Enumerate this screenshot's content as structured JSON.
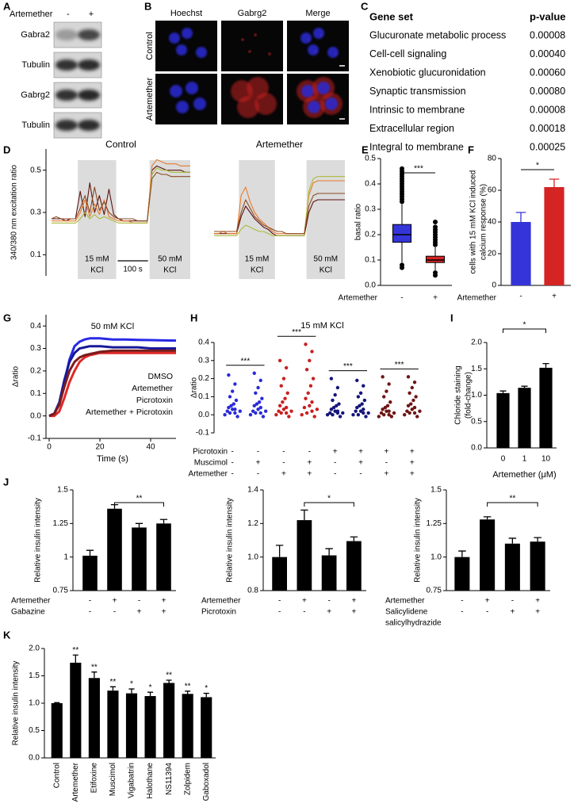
{
  "figure": {
    "A": {
      "label": "A",
      "treatment": "Artemether",
      "lanes": [
        "-",
        "+"
      ],
      "rows": [
        "Gabra2",
        "Tubulin",
        "Gabrg2",
        "Tubulin"
      ]
    },
    "B": {
      "label": "B",
      "columns": [
        "Hoechst",
        "Gabrg2",
        "Merge"
      ],
      "rows": [
        "Control",
        "Artemether"
      ]
    },
    "C": {
      "label": "C",
      "header": [
        "Gene set",
        "p-value"
      ],
      "rows": [
        [
          "Glucuronate metabolic process",
          "0.00008"
        ],
        [
          "Cell-cell signaling",
          "0.00040"
        ],
        [
          "Xenobiotic glucuronidation",
          "0.00060"
        ],
        [
          "Synaptic transmission",
          "0.00080"
        ],
        [
          "Intrinsic to membrane",
          "0.00008"
        ],
        [
          "Extracellular region",
          "0.00018"
        ],
        [
          "Integral to membrane",
          "0.00025"
        ]
      ]
    }
  },
  "chart_data": [
    {
      "type": "line",
      "label": "D",
      "title": "Control",
      "ylabel": "340/380 nm excitation ratio",
      "ylim": [
        0,
        0.6
      ],
      "yticks": [
        0.1,
        0.3,
        0.5
      ],
      "stimuli": [
        [
          "15 mM",
          "KCl"
        ],
        [
          "50 mM",
          "KCl"
        ]
      ],
      "scale_bar": "100 s",
      "series": [
        {
          "color": "#5c1212",
          "values": [
            0.27,
            0.27,
            0.27,
            0.26,
            0.27,
            0.27,
            0.4,
            0.28,
            0.44,
            0.3,
            0.38,
            0.29,
            0.41,
            0.29,
            0.27,
            0.26,
            0.26,
            0.26,
            0.26,
            0.26,
            0.26,
            0.5,
            0.52,
            0.51,
            0.5,
            0.5,
            0.5,
            0.5,
            0.49,
            0.49
          ]
        },
        {
          "color": "#e87a2a",
          "values": [
            0.26,
            0.26,
            0.26,
            0.26,
            0.26,
            0.26,
            0.3,
            0.36,
            0.28,
            0.34,
            0.29,
            0.36,
            0.28,
            0.27,
            0.26,
            0.26,
            0.26,
            0.25,
            0.25,
            0.25,
            0.25,
            0.52,
            0.55,
            0.54,
            0.53,
            0.53,
            0.53,
            0.52,
            0.52,
            0.52
          ]
        },
        {
          "color": "#a9bb3c",
          "values": [
            0.25,
            0.25,
            0.25,
            0.25,
            0.25,
            0.25,
            0.27,
            0.3,
            0.27,
            0.29,
            0.27,
            0.28,
            0.27,
            0.26,
            0.25,
            0.25,
            0.25,
            0.25,
            0.25,
            0.25,
            0.25,
            0.48,
            0.51,
            0.5,
            0.5,
            0.49,
            0.49,
            0.49,
            0.49,
            0.49
          ]
        },
        {
          "color": "#8b4a22",
          "values": [
            0.27,
            0.28,
            0.27,
            0.27,
            0.27,
            0.27,
            0.32,
            0.38,
            0.3,
            0.42,
            0.31,
            0.35,
            0.3,
            0.28,
            0.27,
            0.27,
            0.27,
            0.27,
            0.26,
            0.26,
            0.26,
            0.46,
            0.49,
            0.48,
            0.48,
            0.47,
            0.47,
            0.47,
            0.47,
            0.47
          ]
        }
      ]
    },
    {
      "type": "line",
      "title": "Artemether",
      "ylim": [
        0,
        0.6
      ],
      "stimuli": [
        [
          "15 mM",
          "KCl"
        ],
        [
          "50 mM",
          "KCl"
        ]
      ],
      "series": [
        {
          "color": "#5c1212",
          "values": [
            0.2,
            0.2,
            0.2,
            0.2,
            0.2,
            0.2,
            0.28,
            0.33,
            0.3,
            0.27,
            0.25,
            0.23,
            0.22,
            0.2,
            0.19,
            0.19,
            0.19,
            0.19,
            0.19,
            0.19,
            0.19,
            0.3,
            0.35,
            0.36,
            0.36,
            0.36,
            0.36,
            0.36,
            0.36,
            0.36
          ]
        },
        {
          "color": "#e87a2a",
          "values": [
            0.2,
            0.2,
            0.21,
            0.2,
            0.2,
            0.2,
            0.38,
            0.42,
            0.35,
            0.3,
            0.27,
            0.25,
            0.23,
            0.21,
            0.2,
            0.2,
            0.2,
            0.2,
            0.2,
            0.2,
            0.2,
            0.38,
            0.44,
            0.45,
            0.45,
            0.45,
            0.45,
            0.45,
            0.45,
            0.45
          ]
        },
        {
          "color": "#a9bb3c",
          "values": [
            0.19,
            0.19,
            0.19,
            0.19,
            0.19,
            0.19,
            0.22,
            0.24,
            0.23,
            0.22,
            0.21,
            0.21,
            0.2,
            0.19,
            0.19,
            0.19,
            0.19,
            0.19,
            0.19,
            0.19,
            0.19,
            0.4,
            0.46,
            0.47,
            0.47,
            0.47,
            0.47,
            0.47,
            0.47,
            0.47
          ]
        },
        {
          "color": "#8b4a22",
          "values": [
            0.21,
            0.21,
            0.21,
            0.21,
            0.21,
            0.21,
            0.3,
            0.36,
            0.32,
            0.28,
            0.26,
            0.24,
            0.23,
            0.22,
            0.21,
            0.21,
            0.2,
            0.2,
            0.2,
            0.2,
            0.2,
            0.33,
            0.38,
            0.39,
            0.39,
            0.39,
            0.39,
            0.39,
            0.39,
            0.39
          ]
        }
      ]
    },
    {
      "type": "box",
      "label": "E",
      "ylabel": "basal ratio",
      "xlabel": "Artemether",
      "categories": [
        "-",
        "+"
      ],
      "ylim": [
        0,
        0.5
      ],
      "yticks": [
        {
          "value": 0,
          "label": "0.0"
        },
        0.1,
        0.2,
        0.3,
        0.4,
        0.5
      ],
      "colors": [
        "#3434d8",
        "#d42424"
      ],
      "boxes": [
        {
          "whisker_low": 0.09,
          "q1": 0.17,
          "median": 0.2,
          "q3": 0.24,
          "whisker_high": 0.32,
          "outliers": [
            0.33,
            0.34,
            0.35,
            0.36,
            0.37,
            0.38,
            0.39,
            0.4,
            0.41,
            0.42,
            0.43,
            0.44,
            0.45,
            0.46,
            0.08,
            0.07
          ]
        },
        {
          "whisker_low": 0.06,
          "q1": 0.09,
          "median": 0.1,
          "q3": 0.115,
          "whisker_high": 0.15,
          "outliers": [
            0.16,
            0.17,
            0.18,
            0.19,
            0.2,
            0.21,
            0.22,
            0.23,
            0.25,
            0.05,
            0.04
          ]
        }
      ],
      "significance": "***"
    },
    {
      "type": "bar",
      "label": "F",
      "ylabel": [
        "cells with 15 mM KCl induced",
        "calcium response (%)"
      ],
      "xlabel": "Artemether",
      "categories": [
        "-",
        "+"
      ],
      "values": [
        40,
        62
      ],
      "errors": [
        6,
        5
      ],
      "colors": [
        "#3434d8",
        "#d42424"
      ],
      "ylim": [
        0,
        80
      ],
      "yticks": [
        0,
        20,
        40,
        60,
        80
      ],
      "significance": "*"
    },
    {
      "type": "line",
      "label": "G",
      "title": "50 mM KCl",
      "ylabel": "Δratio",
      "xlabel": "Time (s)",
      "x": [
        0,
        2,
        4,
        6,
        8,
        10,
        12,
        14,
        16,
        18,
        20,
        25,
        30,
        35,
        40,
        45,
        50
      ],
      "xlim": [
        0,
        50
      ],
      "xticks": [
        0,
        20,
        40
      ],
      "ylim": [
        -0.1,
        0.45
      ],
      "yticks": [
        -0.1,
        {
          "value": 0,
          "label": "0.0"
        },
        0.1,
        0.2,
        0.3,
        0.4
      ],
      "series": [
        {
          "name": "DMSO",
          "color": "#2828e6",
          "values": [
            0,
            0.01,
            0.05,
            0.15,
            0.25,
            0.31,
            0.33,
            0.34,
            0.345,
            0.345,
            0.345,
            0.34,
            0.34,
            0.338,
            0.337,
            0.336,
            0.335
          ]
        },
        {
          "name": "Artemether",
          "color": "#e02828",
          "values": [
            0,
            0,
            0.02,
            0.08,
            0.15,
            0.2,
            0.24,
            0.26,
            0.27,
            0.275,
            0.28,
            0.28,
            0.28,
            0.28,
            0.28,
            0.28,
            0.28
          ]
        },
        {
          "name": "Picrotoxin",
          "color": "#18189a",
          "values": [
            0,
            0.01,
            0.06,
            0.16,
            0.24,
            0.28,
            0.3,
            0.305,
            0.31,
            0.31,
            0.31,
            0.305,
            0.305,
            0.305,
            0.3,
            0.3,
            0.3
          ]
        },
        {
          "name": "Artemether + Picrotoxin",
          "color": "#7a1c1c",
          "values": [
            0,
            0.01,
            0.05,
            0.13,
            0.2,
            0.24,
            0.26,
            0.27,
            0.275,
            0.28,
            0.285,
            0.29,
            0.29,
            0.29,
            0.29,
            0.29,
            0.29
          ]
        }
      ]
    },
    {
      "type": "strip",
      "label": "H",
      "title": "15 mM KCl",
      "ylabel": "Δratio",
      "ylim": [
        -0.1,
        0.4
      ],
      "yticks": [
        -0.1,
        {
          "value": 0,
          "label": "0.0"
        },
        0.1,
        0.2,
        0.3,
        0.4
      ],
      "colors": [
        "#2a2ad8",
        "#2a2ad8",
        "#c82020",
        "#c82020",
        "#14147a",
        "#14147a",
        "#6e1414",
        "#6e1414"
      ],
      "values": [
        [
          0.22,
          0.17,
          0.13,
          0.1,
          0.08,
          0.06,
          0.05,
          0.04,
          0.03,
          0.03,
          0.02,
          0.02,
          0.01,
          0.01,
          0.0,
          -0.01
        ],
        [
          0.23,
          0.19,
          0.15,
          0.12,
          0.09,
          0.07,
          0.06,
          0.05,
          0.04,
          0.03,
          0.02,
          0.02,
          0.01,
          0.01,
          0.0,
          -0.01
        ],
        [
          0.3,
          0.26,
          0.2,
          0.16,
          0.12,
          0.09,
          0.07,
          0.05,
          0.04,
          0.03,
          0.02,
          0.02,
          0.01,
          0.01,
          0.0,
          -0.01
        ],
        [
          0.39,
          0.35,
          0.3,
          0.25,
          0.2,
          0.16,
          0.12,
          0.09,
          0.07,
          0.05,
          0.04,
          0.03,
          0.02,
          0.01,
          0.0,
          -0.01
        ],
        [
          0.2,
          0.15,
          0.11,
          0.08,
          0.06,
          0.05,
          0.04,
          0.03,
          0.02,
          0.02,
          0.01,
          0.01,
          0.01,
          0.0,
          0.0,
          -0.01
        ],
        [
          0.19,
          0.16,
          0.12,
          0.1,
          0.08,
          0.06,
          0.05,
          0.04,
          0.03,
          0.02,
          0.02,
          0.01,
          0.01,
          0.0,
          0.0,
          -0.01
        ],
        [
          0.21,
          0.17,
          0.13,
          0.1,
          0.07,
          0.05,
          0.04,
          0.03,
          0.02,
          0.02,
          0.01,
          0.01,
          0.0,
          0.0,
          -0.01,
          -0.01
        ],
        [
          0.21,
          0.18,
          0.15,
          0.12,
          0.1,
          0.08,
          0.06,
          0.05,
          0.04,
          0.03,
          0.02,
          0.02,
          0.01,
          0.01,
          0.0,
          -0.01
        ]
      ],
      "conditions": [
        {
          "name": "Picrotoxin",
          "signs": [
            "-",
            "-",
            "-",
            "-",
            "+",
            "+",
            "+",
            "+"
          ]
        },
        {
          "name": "Muscimol",
          "signs": [
            "-",
            "+",
            "-",
            "+",
            "-",
            "+",
            "-",
            "+"
          ]
        },
        {
          "name": "Artemether",
          "signs": [
            "-",
            "-",
            "+",
            "+",
            "-",
            "-",
            "+",
            "+"
          ]
        }
      ],
      "significance": [
        "***",
        "***",
        "***",
        "***"
      ]
    },
    {
      "type": "bar",
      "label": "I",
      "ylabel": [
        "Chloride staining",
        "(fold-change)"
      ],
      "xlabel": "Artemether (μM)",
      "categories": [
        "0",
        "1",
        "10"
      ],
      "values": [
        1.04,
        1.14,
        1.52
      ],
      "errors": [
        0.04,
        0.03,
        0.08
      ],
      "color": "#000000",
      "ylim": [
        0,
        2
      ],
      "yticks": [
        {
          "value": 0,
          "label": "0.0"
        },
        0.5,
        {
          "value": 1,
          "label": "1.0"
        },
        1.5,
        {
          "value": 2,
          "label": "2.0"
        }
      ],
      "significance": "*"
    },
    {
      "type": "bar",
      "label": "J",
      "ylabel": "Relative insulin intensity",
      "values": [
        1.01,
        1.36,
        1.22,
        1.25
      ],
      "errors": [
        0.04,
        0.03,
        0.03,
        0.03
      ],
      "color": "#000000",
      "ylim": [
        0.75,
        1.5
      ],
      "yticks": [
        0.75,
        1,
        1.25,
        1.5
      ],
      "conditions": [
        {
          "name": "Artemether",
          "signs": [
            "-",
            "+",
            "-",
            "+"
          ]
        },
        {
          "name": "Gabazine",
          "signs": [
            "-",
            "-",
            "+",
            "+"
          ]
        }
      ],
      "significance": "**"
    },
    {
      "type": "bar",
      "ylabel": "Relative insulin intensity",
      "values": [
        1.0,
        1.22,
        1.01,
        1.095
      ],
      "errors": [
        0.07,
        0.06,
        0.04,
        0.025
      ],
      "color": "#000000",
      "ylim": [
        0.8,
        1.4
      ],
      "yticks": [
        0.8,
        {
          "value": 1,
          "label": "1.0"
        },
        1.2,
        1.4
      ],
      "conditions": [
        {
          "name": "Artemether",
          "signs": [
            "-",
            "+",
            "-",
            "+"
          ]
        },
        {
          "name": "Picrotoxin",
          "signs": [
            "-",
            "-",
            "+",
            "+"
          ]
        }
      ],
      "significance": "*"
    },
    {
      "type": "bar",
      "ylabel": "Relative insulin intensity",
      "values": [
        1.0,
        1.28,
        1.1,
        1.115
      ],
      "errors": [
        0.045,
        0.02,
        0.04,
        0.03
      ],
      "color": "#000000",
      "ylim": [
        0.75,
        1.5
      ],
      "yticks": [
        0.75,
        {
          "value": 1,
          "label": "1.0"
        },
        1.25,
        1.5
      ],
      "conditions": [
        {
          "name": "Artemether",
          "signs": [
            "-",
            "+",
            "-",
            "+"
          ]
        },
        {
          "name": [
            "Salicylidene",
            "salicylhydrazide"
          ],
          "signs": [
            "-",
            "-",
            "+",
            "+"
          ]
        }
      ],
      "significance": "**"
    },
    {
      "type": "bar",
      "label": "K",
      "ylabel": "Relative insulin intensity",
      "categories": [
        "Control",
        "Artemether",
        "Etifoxine",
        "Muscimol",
        "Vigabatrin",
        "Halothane",
        "NS11394",
        "Zolpidem",
        "Gaboxadol"
      ],
      "values": [
        1.0,
        1.74,
        1.46,
        1.23,
        1.18,
        1.13,
        1.37,
        1.17,
        1.11
      ],
      "errors": [
        0.01,
        0.14,
        0.11,
        0.07,
        0.08,
        0.07,
        0.05,
        0.05,
        0.07
      ],
      "color": "#000000",
      "ylim": [
        0,
        2
      ],
      "yticks": [
        {
          "value": 0,
          "label": "0.0"
        },
        0.5,
        {
          "value": 1,
          "label": "1.0"
        },
        1.5,
        {
          "value": 2,
          "label": "2.0"
        }
      ],
      "significance": [
        null,
        "**",
        "**",
        "**",
        "*",
        "*",
        "**",
        "**",
        "*"
      ]
    }
  ]
}
